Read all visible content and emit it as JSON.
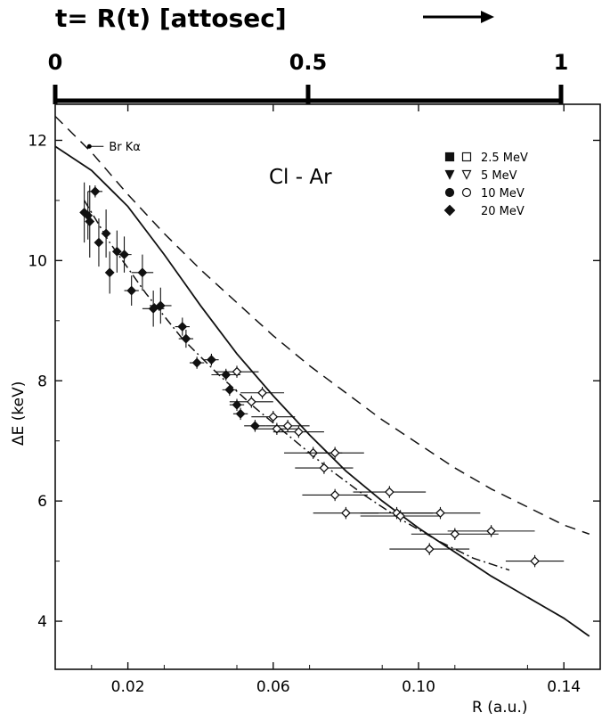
{
  "chart_data": {
    "type": "scatter",
    "title": "Cl - Ar",
    "top_axis": {
      "label": "t= R(t)  [attosec]",
      "ticks": [
        {
          "value": 0,
          "label": "0"
        },
        {
          "value": 0.5,
          "label": "0.5"
        },
        {
          "value": 1,
          "label": "1"
        }
      ],
      "range": [
        0,
        1.1
      ]
    },
    "xlabel": "R  (a.u.)",
    "ylabel": "ΔE  (keV)",
    "xlim": [
      0.0,
      0.15
    ],
    "ylim": [
      3.2,
      12.6
    ],
    "xticks": [
      {
        "value": 0.02,
        "label": "0.02"
      },
      {
        "value": 0.06,
        "label": "0.06"
      },
      {
        "value": 0.1,
        "label": "0.10"
      },
      {
        "value": 0.14,
        "label": "0.14"
      }
    ],
    "yticks": [
      {
        "value": 4,
        "label": "4"
      },
      {
        "value": 6,
        "label": "6"
      },
      {
        "value": 8,
        "label": "8"
      },
      {
        "value": 10,
        "label": "10"
      },
      {
        "value": 12,
        "label": "12"
      }
    ],
    "annotation": {
      "text": "Br Kα",
      "x": 0.004,
      "y": 11.9
    },
    "legend": {
      "placement": "top-right",
      "entries": [
        {
          "label": "2.5 MeV",
          "filled": "square",
          "open": "square"
        },
        {
          "label": "5  MeV",
          "filled": "triangle-down",
          "open": "triangle-down"
        },
        {
          "label": "10  MeV",
          "filled": "circle",
          "open": "circle"
        },
        {
          "label": "20  MeV",
          "filled": "diamond",
          "open": null
        }
      ]
    },
    "curves": [
      {
        "style": "solid",
        "points": [
          [
            0,
            11.9
          ],
          [
            0.01,
            11.5
          ],
          [
            0.02,
            10.9
          ],
          [
            0.03,
            10.1
          ],
          [
            0.04,
            9.25
          ],
          [
            0.05,
            8.45
          ],
          [
            0.06,
            7.75
          ],
          [
            0.07,
            7.1
          ],
          [
            0.08,
            6.5
          ],
          [
            0.09,
            6.0
          ],
          [
            0.1,
            5.55
          ],
          [
            0.11,
            5.15
          ],
          [
            0.12,
            4.75
          ],
          [
            0.13,
            4.4
          ],
          [
            0.14,
            4.05
          ],
          [
            0.147,
            3.75
          ]
        ]
      },
      {
        "style": "long-dash",
        "points": [
          [
            0,
            12.4
          ],
          [
            0.01,
            11.8
          ],
          [
            0.02,
            11.1
          ],
          [
            0.03,
            10.45
          ],
          [
            0.04,
            9.85
          ],
          [
            0.05,
            9.3
          ],
          [
            0.06,
            8.75
          ],
          [
            0.07,
            8.25
          ],
          [
            0.08,
            7.8
          ],
          [
            0.09,
            7.35
          ],
          [
            0.1,
            6.95
          ],
          [
            0.11,
            6.55
          ],
          [
            0.12,
            6.2
          ],
          [
            0.13,
            5.9
          ],
          [
            0.14,
            5.6
          ],
          [
            0.147,
            5.45
          ]
        ]
      },
      {
        "style": "dash-dot",
        "points": [
          [
            0.008,
            11.0
          ],
          [
            0.015,
            10.3
          ],
          [
            0.025,
            9.45
          ],
          [
            0.035,
            8.7
          ],
          [
            0.045,
            8.1
          ],
          [
            0.055,
            7.55
          ],
          [
            0.065,
            7.05
          ],
          [
            0.075,
            6.55
          ],
          [
            0.085,
            6.1
          ],
          [
            0.095,
            5.7
          ],
          [
            0.105,
            5.35
          ],
          [
            0.115,
            5.05
          ],
          [
            0.125,
            4.85
          ]
        ]
      }
    ],
    "points": [
      {
        "x": 0.008,
        "y": 10.8,
        "xerr": 0.0,
        "yerr": 0.5,
        "marker": "filled"
      },
      {
        "x": 0.009,
        "y": 10.75,
        "xerr": 0.0,
        "yerr": 0.4,
        "marker": "filled"
      },
      {
        "x": 0.0095,
        "y": 10.65,
        "xerr": 0.0,
        "yerr": 0.6,
        "marker": "filled"
      },
      {
        "x": 0.011,
        "y": 11.15,
        "xerr": 0.002,
        "yerr": 0.1,
        "marker": "filled"
      },
      {
        "x": 0.012,
        "y": 10.3,
        "xerr": 0.001,
        "yerr": 0.4,
        "marker": "filled"
      },
      {
        "x": 0.014,
        "y": 10.45,
        "xerr": 0.001,
        "yerr": 0.4,
        "marker": "filled"
      },
      {
        "x": 0.015,
        "y": 9.8,
        "xerr": 0.001,
        "yerr": 0.35,
        "marker": "filled"
      },
      {
        "x": 0.017,
        "y": 10.15,
        "xerr": 0.001,
        "yerr": 0.35,
        "marker": "filled"
      },
      {
        "x": 0.019,
        "y": 10.1,
        "xerr": 0.002,
        "yerr": 0.3,
        "marker": "filled"
      },
      {
        "x": 0.021,
        "y": 9.5,
        "xerr": 0.002,
        "yerr": 0.25,
        "marker": "filled"
      },
      {
        "x": 0.024,
        "y": 9.8,
        "xerr": 0.003,
        "yerr": 0.3,
        "marker": "filled"
      },
      {
        "x": 0.027,
        "y": 9.2,
        "xerr": 0.003,
        "yerr": 0.3,
        "marker": "filled"
      },
      {
        "x": 0.029,
        "y": 9.25,
        "xerr": 0.003,
        "yerr": 0.3,
        "marker": "filled"
      },
      {
        "x": 0.035,
        "y": 8.9,
        "xerr": 0.002,
        "yerr": 0.15,
        "marker": "filled"
      },
      {
        "x": 0.036,
        "y": 8.7,
        "xerr": 0.002,
        "yerr": 0.15,
        "marker": "filled"
      },
      {
        "x": 0.039,
        "y": 8.3,
        "xerr": 0.002,
        "yerr": 0.1,
        "marker": "filled"
      },
      {
        "x": 0.043,
        "y": 8.35,
        "xerr": 0.002,
        "yerr": 0.1,
        "marker": "filled"
      },
      {
        "x": 0.047,
        "y": 8.1,
        "xerr": 0.004,
        "yerr": 0.1,
        "marker": "filled"
      },
      {
        "x": 0.048,
        "y": 7.85,
        "xerr": 0.002,
        "yerr": 0.1,
        "marker": "filled"
      },
      {
        "x": 0.05,
        "y": 7.6,
        "xerr": 0.002,
        "yerr": 0.1,
        "marker": "filled"
      },
      {
        "x": 0.051,
        "y": 7.45,
        "xerr": 0.002,
        "yerr": 0.1,
        "marker": "filled"
      },
      {
        "x": 0.055,
        "y": 7.25,
        "xerr": 0.003,
        "yerr": 0.1,
        "marker": "filled"
      },
      {
        "x": 0.05,
        "y": 8.15,
        "xerr": 0.006,
        "yerr": 0.1,
        "marker": "open"
      },
      {
        "x": 0.054,
        "y": 7.65,
        "xerr": 0.006,
        "yerr": 0.1,
        "marker": "open"
      },
      {
        "x": 0.057,
        "y": 7.8,
        "xerr": 0.006,
        "yerr": 0.1,
        "marker": "open"
      },
      {
        "x": 0.06,
        "y": 7.4,
        "xerr": 0.006,
        "yerr": 0.1,
        "marker": "open"
      },
      {
        "x": 0.061,
        "y": 7.2,
        "xerr": 0.006,
        "yerr": 0.1,
        "marker": "open"
      },
      {
        "x": 0.064,
        "y": 7.25,
        "xerr": 0.006,
        "yerr": 0.1,
        "marker": "open"
      },
      {
        "x": 0.067,
        "y": 7.15,
        "xerr": 0.007,
        "yerr": 0.1,
        "marker": "open"
      },
      {
        "x": 0.071,
        "y": 6.8,
        "xerr": 0.008,
        "yerr": 0.1,
        "marker": "open"
      },
      {
        "x": 0.074,
        "y": 6.55,
        "xerr": 0.008,
        "yerr": 0.1,
        "marker": "open"
      },
      {
        "x": 0.077,
        "y": 6.8,
        "xerr": 0.008,
        "yerr": 0.1,
        "marker": "open"
      },
      {
        "x": 0.077,
        "y": 6.1,
        "xerr": 0.009,
        "yerr": 0.1,
        "marker": "open"
      },
      {
        "x": 0.08,
        "y": 5.8,
        "xerr": 0.009,
        "yerr": 0.1,
        "marker": "open"
      },
      {
        "x": 0.092,
        "y": 6.15,
        "xerr": 0.01,
        "yerr": 0.1,
        "marker": "open"
      },
      {
        "x": 0.094,
        "y": 5.8,
        "xerr": 0.01,
        "yerr": 0.1,
        "marker": "open"
      },
      {
        "x": 0.095,
        "y": 5.75,
        "xerr": 0.011,
        "yerr": 0.1,
        "marker": "open"
      },
      {
        "x": 0.103,
        "y": 5.2,
        "xerr": 0.011,
        "yerr": 0.1,
        "marker": "open"
      },
      {
        "x": 0.106,
        "y": 5.8,
        "xerr": 0.011,
        "yerr": 0.1,
        "marker": "open"
      },
      {
        "x": 0.11,
        "y": 5.45,
        "xerr": 0.012,
        "yerr": 0.1,
        "marker": "open"
      },
      {
        "x": 0.12,
        "y": 5.5,
        "xerr": 0.012,
        "yerr": 0.1,
        "marker": "open"
      },
      {
        "x": 0.132,
        "y": 5.0,
        "xerr": 0.008,
        "yerr": 0.1,
        "marker": "open"
      }
    ],
    "grid": false
  }
}
